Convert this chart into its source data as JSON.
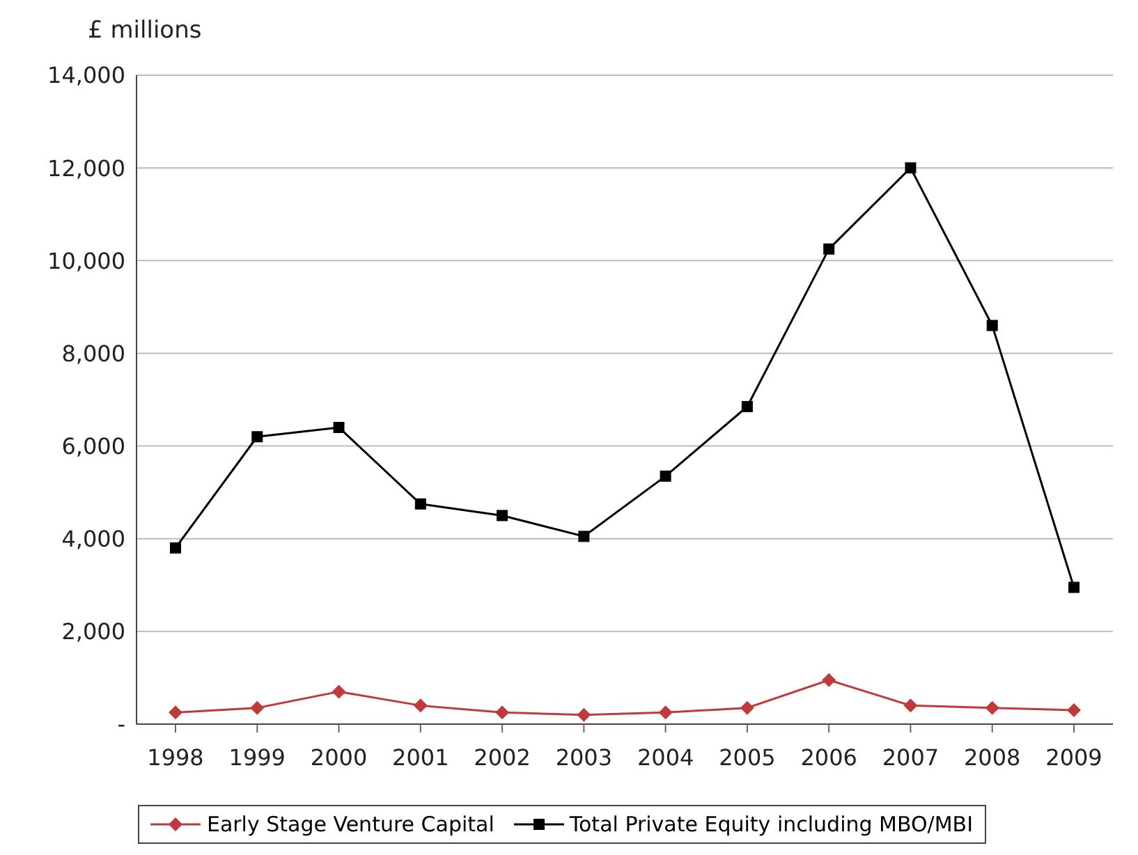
{
  "chart_data": {
    "type": "line",
    "ylabel": "£ millions",
    "categories": [
      "1998",
      "1999",
      "2000",
      "2001",
      "2002",
      "2003",
      "2004",
      "2005",
      "2006",
      "2007",
      "2008",
      "2009"
    ],
    "series": [
      {
        "name": "Early Stage Venture Capital",
        "color": "#c0393b",
        "marker": "diamond",
        "values": [
          250,
          350,
          700,
          400,
          250,
          200,
          250,
          350,
          950,
          400,
          350,
          300
        ]
      },
      {
        "name": "Total Private Equity including MBO/MBI",
        "color": "#000000",
        "marker": "square",
        "values": [
          3800,
          6200,
          6400,
          4750,
          4500,
          4050,
          5350,
          6850,
          10250,
          12000,
          8600,
          2950
        ]
      }
    ],
    "ylim": [
      0,
      14000
    ],
    "yticks": [
      {
        "value": 0,
        "label": "-"
      },
      {
        "value": 2000,
        "label": "2,000"
      },
      {
        "value": 4000,
        "label": "4,000"
      },
      {
        "value": 6000,
        "label": "6,000"
      },
      {
        "value": 8000,
        "label": "8,000"
      },
      {
        "value": 10000,
        "label": "10,000"
      },
      {
        "value": 12000,
        "label": "12,000"
      },
      {
        "value": 14000,
        "label": "14,000"
      }
    ],
    "grid": "y",
    "legend": "bottom",
    "line_style": "solid"
  }
}
